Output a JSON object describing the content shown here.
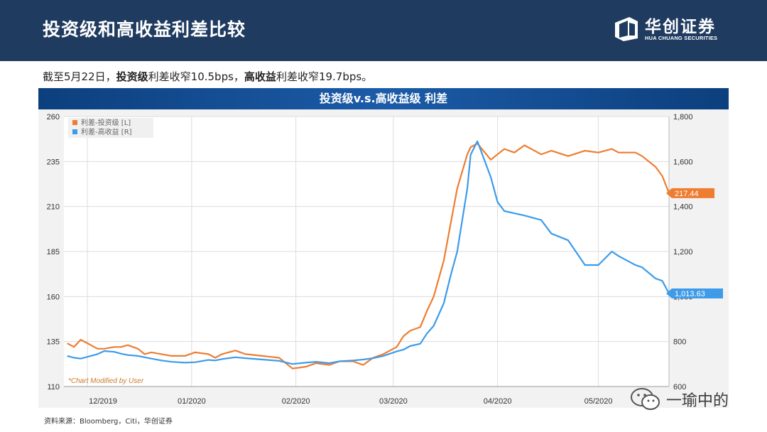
{
  "header": {
    "title": "投资级和高收益利差比较"
  },
  "logo": {
    "name_cn": "华创证券",
    "name_en": "HUA CHUANG SECURITIES"
  },
  "summary": {
    "prefix": "截至5月22日，",
    "ig_label": "投资级",
    "ig_text": "利差收窄10.5bps，",
    "hy_label": "高收益",
    "hy_text": "利差收窄19.7bps。"
  },
  "chart_title": "投资级v.s.高收益级 利差",
  "chart_data": {
    "type": "line",
    "title": "投资级v.s.高收益级 利差",
    "x_ticks": [
      "12/2019",
      "01/2020",
      "02/2020",
      "03/2020",
      "04/2020",
      "05/2020"
    ],
    "ylim_left": [
      110,
      260
    ],
    "ylim_right": [
      600,
      1800
    ],
    "yticks_left": [
      "260",
      "235",
      "210",
      "185",
      "160",
      "135",
      "110"
    ],
    "yticks_right": [
      "1,800",
      "1,600",
      "1,400",
      "1,200",
      "1,000",
      "800",
      "600"
    ],
    "grid": true,
    "legend_position": "top-left",
    "annotation": "*Chart Modified by User",
    "series": [
      {
        "name": "利差-投资级 [L]",
        "axis": "left",
        "color": "#ee7d31",
        "last_value_label": "217.44",
        "x": [
          "2019-11-25",
          "2019-11-27",
          "2019-11-29",
          "2019-12-02",
          "2019-12-04",
          "2019-12-06",
          "2019-12-09",
          "2019-12-11",
          "2019-12-13",
          "2019-12-16",
          "2019-12-18",
          "2019-12-20",
          "2019-12-23",
          "2019-12-26",
          "2019-12-30",
          "2020-01-02",
          "2020-01-06",
          "2020-01-08",
          "2020-01-10",
          "2020-01-14",
          "2020-01-17",
          "2020-01-22",
          "2020-01-27",
          "2020-01-31",
          "2020-02-04",
          "2020-02-07",
          "2020-02-11",
          "2020-02-14",
          "2020-02-18",
          "2020-02-21",
          "2020-02-24",
          "2020-02-27",
          "2020-03-02",
          "2020-03-04",
          "2020-03-06",
          "2020-03-09",
          "2020-03-11",
          "2020-03-13",
          "2020-03-16",
          "2020-03-18",
          "2020-03-20",
          "2020-03-23",
          "2020-03-24",
          "2020-03-26",
          "2020-03-30",
          "2020-04-01",
          "2020-04-03",
          "2020-04-06",
          "2020-04-09",
          "2020-04-14",
          "2020-04-17",
          "2020-04-22",
          "2020-04-27",
          "2020-05-01",
          "2020-05-05",
          "2020-05-07",
          "2020-05-12",
          "2020-05-14",
          "2020-05-18",
          "2020-05-20",
          "2020-05-22"
        ],
        "values": [
          134,
          132,
          136,
          133,
          131,
          131,
          132,
          132,
          133,
          131,
          128,
          129,
          128,
          127,
          127,
          129,
          128,
          126,
          128,
          130,
          128,
          127,
          126,
          120,
          121,
          123,
          122,
          124,
          124,
          122,
          126,
          128,
          132,
          138,
          141,
          143,
          152,
          160,
          180,
          200,
          220,
          239,
          243,
          245,
          236,
          239,
          242,
          240,
          244,
          239,
          241,
          238,
          241,
          240,
          242,
          240,
          240,
          238,
          232,
          227,
          217.44
        ]
      },
      {
        "name": "利差-高收益 [R]",
        "axis": "right",
        "color": "#3d9be9",
        "last_value_label": "1,013.63",
        "x": [
          "2019-11-25",
          "2019-11-27",
          "2019-11-29",
          "2019-12-02",
          "2019-12-04",
          "2019-12-06",
          "2019-12-09",
          "2019-12-11",
          "2019-12-13",
          "2019-12-16",
          "2019-12-18",
          "2019-12-20",
          "2019-12-23",
          "2019-12-26",
          "2019-12-30",
          "2020-01-02",
          "2020-01-06",
          "2020-01-08",
          "2020-01-10",
          "2020-01-14",
          "2020-01-17",
          "2020-01-22",
          "2020-01-27",
          "2020-01-31",
          "2020-02-04",
          "2020-02-07",
          "2020-02-11",
          "2020-02-14",
          "2020-02-18",
          "2020-02-21",
          "2020-02-24",
          "2020-02-27",
          "2020-03-02",
          "2020-03-04",
          "2020-03-06",
          "2020-03-09",
          "2020-03-11",
          "2020-03-13",
          "2020-03-16",
          "2020-03-18",
          "2020-03-20",
          "2020-03-23",
          "2020-03-24",
          "2020-03-26",
          "2020-03-30",
          "2020-04-01",
          "2020-04-03",
          "2020-04-06",
          "2020-04-09",
          "2020-04-14",
          "2020-04-17",
          "2020-04-22",
          "2020-04-27",
          "2020-05-01",
          "2020-05-05",
          "2020-05-07",
          "2020-05-12",
          "2020-05-14",
          "2020-05-18",
          "2020-05-20",
          "2020-05-22"
        ],
        "values": [
          736,
          728,
          724,
          736,
          744,
          758,
          754,
          746,
          740,
          736,
          730,
          724,
          716,
          710,
          706,
          708,
          718,
          716,
          722,
          730,
          726,
          720,
          714,
          700,
          706,
          710,
          704,
          712,
          716,
          720,
          726,
          736,
          756,
          764,
          780,
          790,
          836,
          870,
          970,
          1090,
          1200,
          1480,
          1630,
          1690,
          1530,
          1420,
          1380,
          1370,
          1360,
          1340,
          1280,
          1250,
          1140,
          1140,
          1200,
          1180,
          1140,
          1130,
          1080,
          1070,
          1013.63
        ]
      }
    ]
  },
  "source": "资料来源：Bloomberg，Citi，华创证券",
  "watermark": {
    "text": "一瑜中的"
  }
}
